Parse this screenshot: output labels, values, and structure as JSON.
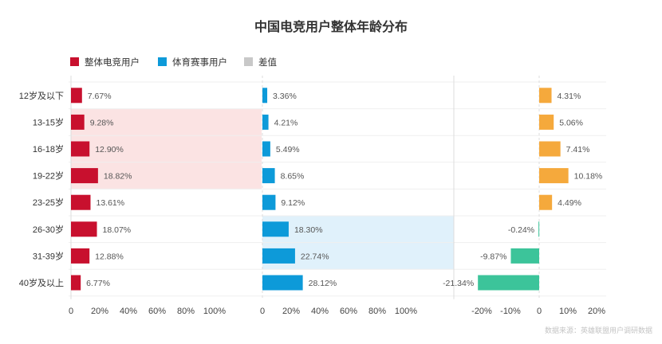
{
  "title": "中国电竞用户整体年龄分布",
  "source": "数据来源：英雄联盟用户调研数据",
  "colors": {
    "overall": "#c8102e",
    "sports": "#0d9ad9",
    "diff_positive": "#f5a93c",
    "diff_negative": "#3cc49a",
    "legend_diff": "#c8c8c8",
    "highlight_red": "#fbe3e3",
    "highlight_blue": "#e0f1fb"
  },
  "chart_data": {
    "type": "bar",
    "orientation": "horizontal",
    "categories": [
      "12岁及以下",
      "13-15岁",
      "16-18岁",
      "19-22岁",
      "23-25岁",
      "26-30岁",
      "31-39岁",
      "40岁及以上"
    ],
    "series": [
      {
        "name": "整体电竞用户",
        "values": [
          7.67,
          9.28,
          12.9,
          18.82,
          13.61,
          18.07,
          12.88,
          6.77
        ],
        "labels": [
          "7.67%",
          "9.28%",
          "12.90%",
          "18.82%",
          "13.61%",
          "18.07%",
          "12.88%",
          "6.77%"
        ],
        "xlim": [
          0,
          100
        ],
        "ticks": [
          "0",
          "20%",
          "40%",
          "60%",
          "80%",
          "100%"
        ]
      },
      {
        "name": "体育赛事用户",
        "values": [
          3.36,
          4.21,
          5.49,
          8.65,
          9.12,
          18.3,
          22.74,
          28.12
        ],
        "labels": [
          "3.36%",
          "4.21%",
          "5.49%",
          "8.65%",
          "9.12%",
          "18.30%",
          "22.74%",
          "28.12%"
        ],
        "xlim": [
          0,
          100
        ],
        "ticks": [
          "0",
          "20%",
          "40%",
          "60%",
          "80%",
          "100%"
        ]
      },
      {
        "name": "差值",
        "values": [
          4.31,
          5.06,
          7.41,
          10.18,
          4.49,
          -0.24,
          -9.87,
          -21.34
        ],
        "labels": [
          "4.31%",
          "5.06%",
          "7.41%",
          "10.18%",
          "4.49%",
          "-0.24%",
          "-9.87%",
          "-21.34%"
        ],
        "xlim": [
          -40,
          40
        ],
        "ticks": [
          "-20%",
          "-10%",
          "0",
          "10%",
          "20%"
        ]
      }
    ],
    "highlight_bands": [
      {
        "panel": "整体电竞用户",
        "from_category": "13-15岁",
        "to_category": "19-22岁"
      },
      {
        "panel": "体育赛事用户",
        "from_category": "26-30岁",
        "to_category": "31-39岁"
      }
    ],
    "legend_position": "top-left"
  }
}
